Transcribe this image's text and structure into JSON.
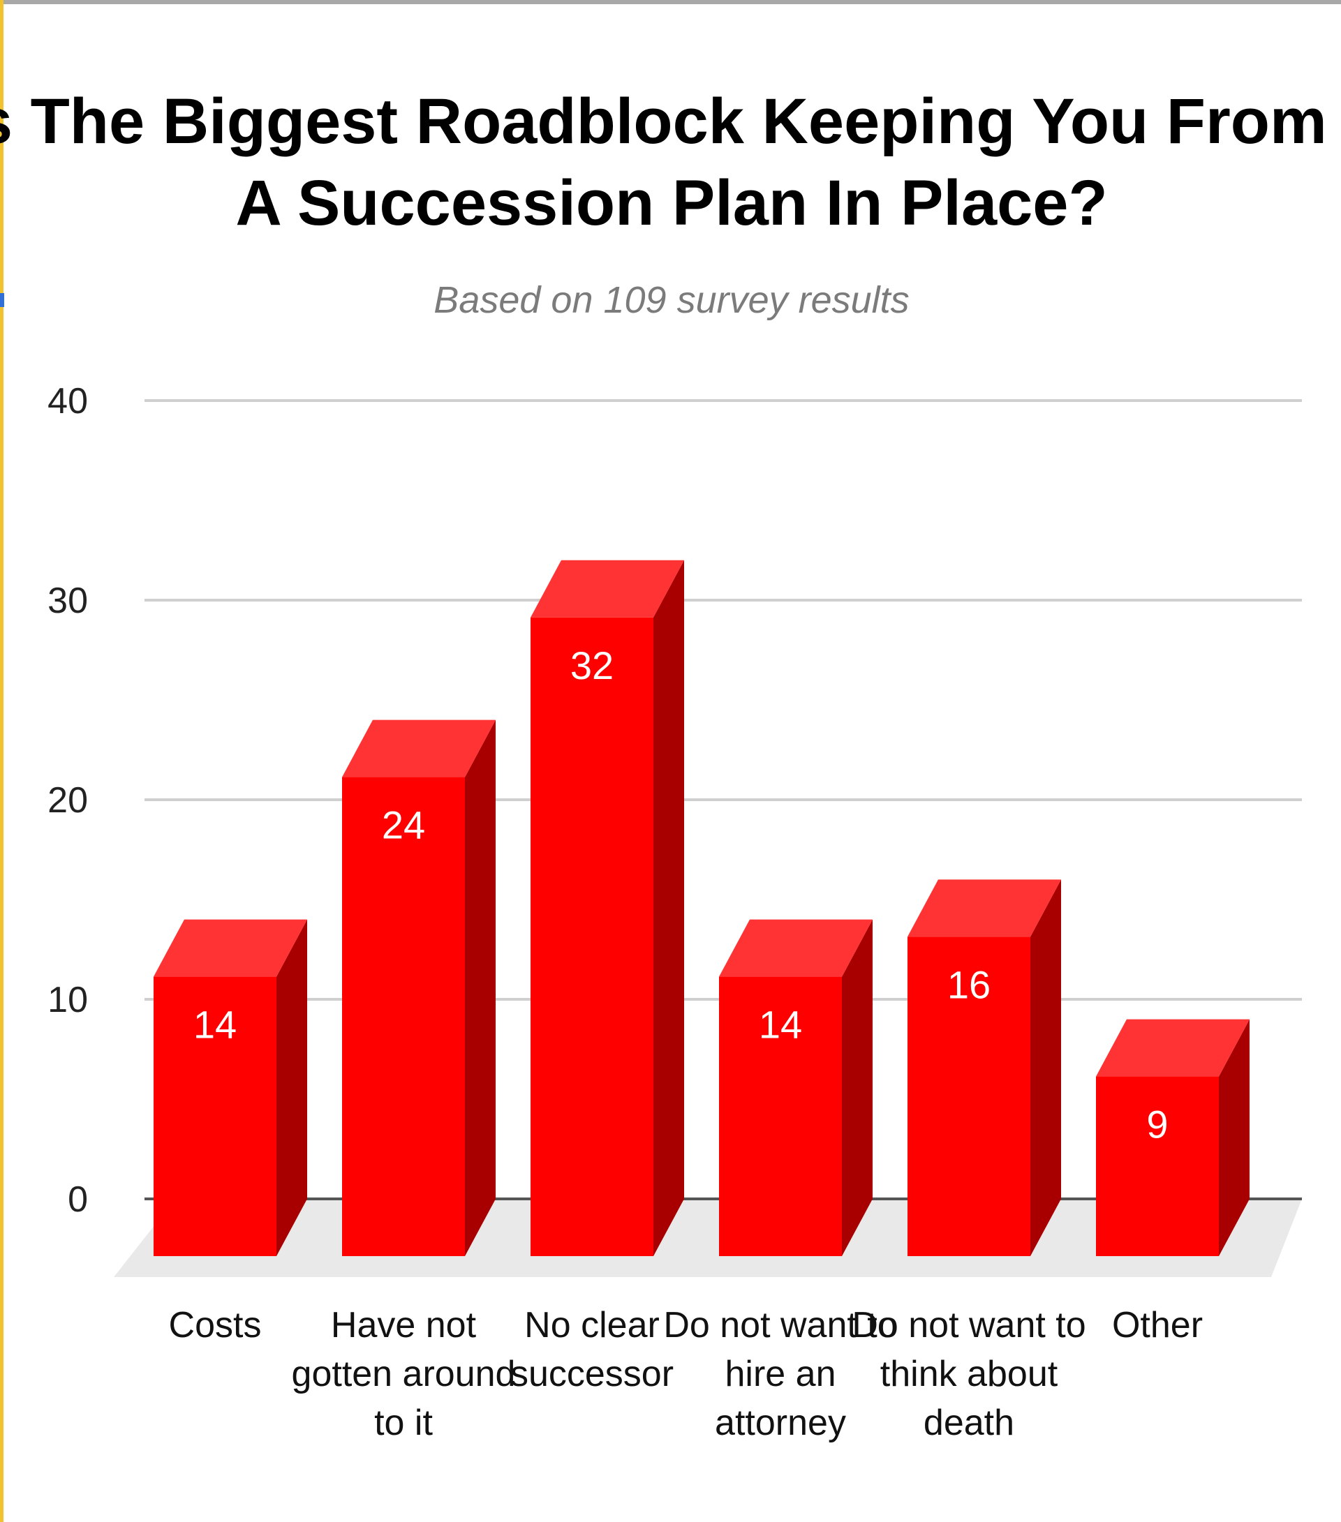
{
  "chart_data": {
    "type": "bar",
    "title_lines": [
      "What Is The Biggest Roadblock Keeping You From Having",
      "A Succession Plan In Place?"
    ],
    "subtitle": "Based on 109 survey results",
    "categories": [
      [
        "Costs"
      ],
      [
        "Have not",
        "gotten around",
        "to it"
      ],
      [
        "No clear",
        "successor"
      ],
      [
        "Do not want to",
        "hire an",
        "attorney"
      ],
      [
        "Do not want to",
        "think about",
        "death"
      ],
      [
        "Other"
      ]
    ],
    "values": [
      14,
      24,
      32,
      14,
      16,
      9
    ],
    "ylim": [
      0,
      40
    ],
    "yticks": [
      0,
      10,
      20,
      30,
      40
    ],
    "grid": true,
    "legend": "none",
    "style": "3d",
    "colors": {
      "bar_front": "#ff0000",
      "bar_top": "#ff3333",
      "bar_side": "#a80000",
      "floor": "#e9e9e9",
      "gridline": "#cfcfcf",
      "baseline": "#555555"
    }
  }
}
